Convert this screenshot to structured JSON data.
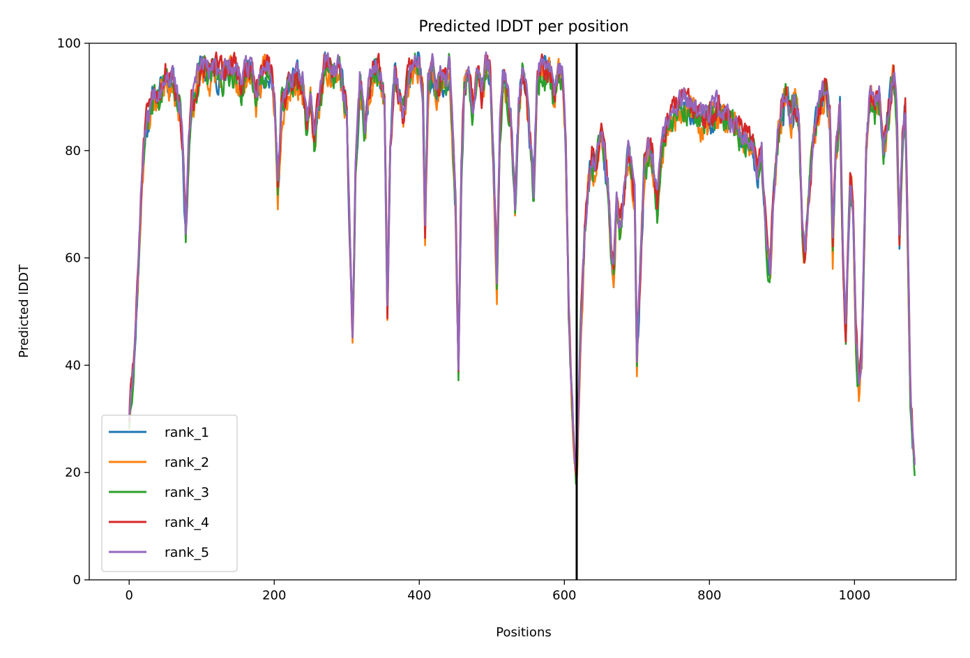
{
  "chart_data": {
    "type": "line",
    "title": "Predicted lDDT per position",
    "xlabel": "Positions",
    "ylabel": "Predicted lDDT",
    "xlim": [
      -55,
      1140
    ],
    "ylim": [
      0,
      100
    ],
    "xticks": [
      0,
      200,
      400,
      600,
      800,
      1000
    ],
    "yticks": [
      0,
      20,
      40,
      60,
      80,
      100
    ],
    "grid": false,
    "legend_position": "lower-left",
    "chain_break": 617,
    "base_profile": [
      [
        0,
        30
      ],
      [
        3,
        36
      ],
      [
        6,
        40
      ],
      [
        10,
        50
      ],
      [
        14,
        63
      ],
      [
        18,
        76
      ],
      [
        22,
        84
      ],
      [
        30,
        88
      ],
      [
        35,
        91
      ],
      [
        40,
        90
      ],
      [
        45,
        92
      ],
      [
        50,
        94
      ],
      [
        55,
        93
      ],
      [
        60,
        95
      ],
      [
        65,
        91
      ],
      [
        70,
        88
      ],
      [
        74,
        80
      ],
      [
        78,
        64
      ],
      [
        82,
        80
      ],
      [
        86,
        88
      ],
      [
        90,
        90
      ],
      [
        95,
        94
      ],
      [
        100,
        96
      ],
      [
        110,
        94
      ],
      [
        120,
        95
      ],
      [
        130,
        94
      ],
      [
        140,
        96
      ],
      [
        150,
        94
      ],
      [
        155,
        91
      ],
      [
        160,
        95
      ],
      [
        170,
        94
      ],
      [
        175,
        90
      ],
      [
        180,
        93
      ],
      [
        190,
        96
      ],
      [
        198,
        93
      ],
      [
        202,
        85
      ],
      [
        205,
        73
      ],
      [
        210,
        88
      ],
      [
        220,
        92
      ],
      [
        230,
        94
      ],
      [
        240,
        92
      ],
      [
        245,
        84
      ],
      [
        250,
        90
      ],
      [
        255,
        82
      ],
      [
        260,
        88
      ],
      [
        270,
        96
      ],
      [
        280,
        94
      ],
      [
        290,
        96
      ],
      [
        296,
        90
      ],
      [
        300,
        88
      ],
      [
        305,
        60
      ],
      [
        308,
        44
      ],
      [
        312,
        75
      ],
      [
        318,
        93
      ],
      [
        325,
        84
      ],
      [
        330,
        92
      ],
      [
        340,
        96
      ],
      [
        345,
        94
      ],
      [
        352,
        90
      ],
      [
        356,
        50
      ],
      [
        360,
        80
      ],
      [
        366,
        95
      ],
      [
        372,
        90
      ],
      [
        378,
        86
      ],
      [
        385,
        94
      ],
      [
        392,
        96
      ],
      [
        400,
        97
      ],
      [
        405,
        90
      ],
      [
        408,
        65
      ],
      [
        412,
        92
      ],
      [
        418,
        96
      ],
      [
        424,
        90
      ],
      [
        430,
        94
      ],
      [
        436,
        92
      ],
      [
        442,
        96
      ],
      [
        450,
        70
      ],
      [
        454,
        39
      ],
      [
        458,
        76
      ],
      [
        462,
        92
      ],
      [
        468,
        95
      ],
      [
        474,
        88
      ],
      [
        480,
        94
      ],
      [
        486,
        90
      ],
      [
        492,
        97
      ],
      [
        498,
        94
      ],
      [
        504,
        70
      ],
      [
        507,
        56
      ],
      [
        511,
        84
      ],
      [
        516,
        95
      ],
      [
        522,
        90
      ],
      [
        527,
        85
      ],
      [
        532,
        70
      ],
      [
        537,
        88
      ],
      [
        542,
        94
      ],
      [
        548,
        90
      ],
      [
        554,
        80
      ],
      [
        558,
        72
      ],
      [
        562,
        92
      ],
      [
        568,
        96
      ],
      [
        574,
        94
      ],
      [
        580,
        95
      ],
      [
        586,
        90
      ],
      [
        592,
        95
      ],
      [
        598,
        94
      ],
      [
        602,
        80
      ],
      [
        606,
        50
      ],
      [
        610,
        35
      ],
      [
        614,
        22
      ],
      [
        617,
        18
      ],
      [
        619,
        30
      ],
      [
        623,
        48
      ],
      [
        628,
        64
      ],
      [
        633,
        74
      ],
      [
        638,
        78
      ],
      [
        642,
        76
      ],
      [
        646,
        80
      ],
      [
        651,
        82
      ],
      [
        656,
        78
      ],
      [
        661,
        72
      ],
      [
        665,
        60
      ],
      [
        668,
        58
      ],
      [
        672,
        70
      ],
      [
        677,
        64
      ],
      [
        682,
        72
      ],
      [
        688,
        80
      ],
      [
        692,
        76
      ],
      [
        697,
        70
      ],
      [
        700,
        40
      ],
      [
        704,
        55
      ],
      [
        710,
        76
      ],
      [
        716,
        80
      ],
      [
        722,
        78
      ],
      [
        728,
        70
      ],
      [
        734,
        80
      ],
      [
        740,
        84
      ],
      [
        748,
        86
      ],
      [
        756,
        88
      ],
      [
        764,
        89
      ],
      [
        772,
        88
      ],
      [
        780,
        87
      ],
      [
        790,
        86
      ],
      [
        800,
        86
      ],
      [
        810,
        88
      ],
      [
        820,
        86
      ],
      [
        830,
        85
      ],
      [
        840,
        84
      ],
      [
        850,
        82
      ],
      [
        860,
        80
      ],
      [
        866,
        76
      ],
      [
        872,
        80
      ],
      [
        876,
        70
      ],
      [
        880,
        60
      ],
      [
        884,
        58
      ],
      [
        888,
        72
      ],
      [
        894,
        82
      ],
      [
        900,
        88
      ],
      [
        906,
        90
      ],
      [
        912,
        86
      ],
      [
        918,
        90
      ],
      [
        924,
        84
      ],
      [
        928,
        64
      ],
      [
        932,
        60
      ],
      [
        936,
        70
      ],
      [
        942,
        80
      ],
      [
        948,
        86
      ],
      [
        954,
        90
      ],
      [
        960,
        92
      ],
      [
        966,
        86
      ],
      [
        970,
        62
      ],
      [
        974,
        80
      ],
      [
        980,
        88
      ],
      [
        984,
        60
      ],
      [
        988,
        46
      ],
      [
        994,
        75
      ],
      [
        998,
        70
      ],
      [
        1002,
        45
      ],
      [
        1006,
        36
      ],
      [
        1010,
        42
      ],
      [
        1016,
        80
      ],
      [
        1022,
        92
      ],
      [
        1028,
        88
      ],
      [
        1034,
        90
      ],
      [
        1040,
        80
      ],
      [
        1046,
        86
      ],
      [
        1050,
        90
      ],
      [
        1054,
        94
      ],
      [
        1058,
        88
      ],
      [
        1062,
        64
      ],
      [
        1066,
        82
      ],
      [
        1070,
        88
      ],
      [
        1074,
        60
      ],
      [
        1077,
        35
      ],
      [
        1080,
        28
      ],
      [
        1083,
        22
      ]
    ],
    "series": [
      {
        "name": "rank_1",
        "color": "#1f77b4",
        "seed": 11,
        "amp": 2.2,
        "offset": -0.4
      },
      {
        "name": "rank_2",
        "color": "#ff7f0e",
        "seed": 23,
        "amp": 2.4,
        "offset": -0.8
      },
      {
        "name": "rank_3",
        "color": "#2ca02c",
        "seed": 37,
        "amp": 2.3,
        "offset": -0.6
      },
      {
        "name": "rank_4",
        "color": "#d62728",
        "seed": 51,
        "amp": 2.0,
        "offset": 0.5
      },
      {
        "name": "rank_5",
        "color": "#9467bd",
        "seed": 67,
        "amp": 1.6,
        "offset": 0.7
      }
    ]
  }
}
